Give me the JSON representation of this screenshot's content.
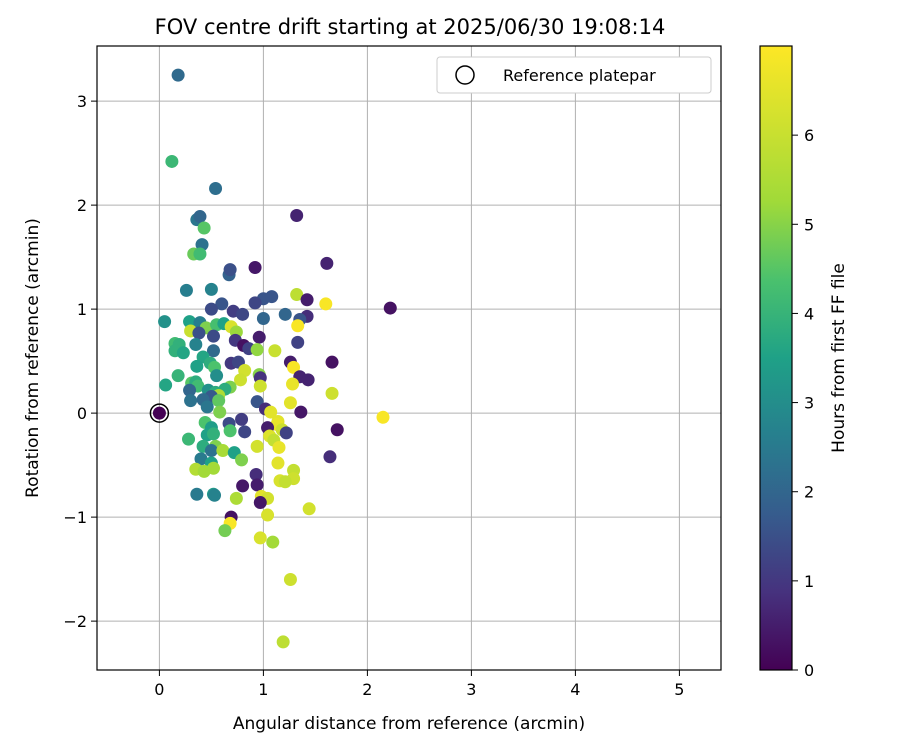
{
  "chart_data": {
    "type": "scatter",
    "title": "FOV centre drift starting at 2025/06/30 19:08:14",
    "xlabel": "Angular distance from reference (arcmin)",
    "ylabel": "Rotation from reference (arcmin)",
    "xlim": [
      -0.6,
      5.4
    ],
    "ylim": [
      -2.47,
      3.53
    ],
    "xticks": [
      0,
      1,
      2,
      3,
      4,
      5
    ],
    "yticks": [
      -2,
      -1,
      0,
      1,
      2,
      3
    ],
    "xtick_labels": [
      "0",
      "1",
      "2",
      "3",
      "4",
      "5"
    ],
    "ytick_labels": [
      "−2",
      "−1",
      "0",
      "1",
      "2",
      "3"
    ],
    "grid": true,
    "legend": {
      "position": "top-right",
      "entries": [
        "Reference platepar"
      ]
    },
    "reference_point": {
      "x": 0,
      "y": 0
    },
    "colorbar": {
      "label": "Hours from first FF file",
      "range": [
        0,
        7
      ],
      "ticks": [
        0,
        1,
        2,
        3,
        4,
        5,
        6
      ],
      "tick_labels": [
        "0",
        "1",
        "2",
        "3",
        "4",
        "5",
        "6"
      ],
      "colormap": "viridis"
    },
    "points": [
      {
        "x": 0.18,
        "y": 3.25,
        "c": 2.1
      },
      {
        "x": 0.12,
        "y": 2.42,
        "c": 4.1
      },
      {
        "x": 0.54,
        "y": 2.16,
        "c": 2.2
      },
      {
        "x": 1.32,
        "y": 1.9,
        "c": 0.6
      },
      {
        "x": 0.36,
        "y": 1.86,
        "c": 2.4
      },
      {
        "x": 0.39,
        "y": 1.89,
        "c": 2.0
      },
      {
        "x": 0.43,
        "y": 1.78,
        "c": 4.5
      },
      {
        "x": 0.41,
        "y": 1.62,
        "c": 2.3
      },
      {
        "x": 0.33,
        "y": 1.53,
        "c": 4.7
      },
      {
        "x": 0.39,
        "y": 1.53,
        "c": 4.2
      },
      {
        "x": 1.61,
        "y": 1.44,
        "c": 0.6
      },
      {
        "x": 0.92,
        "y": 1.4,
        "c": 0.4
      },
      {
        "x": 0.67,
        "y": 1.33,
        "c": 1.9
      },
      {
        "x": 0.68,
        "y": 1.38,
        "c": 1.5
      },
      {
        "x": 0.5,
        "y": 1.19,
        "c": 2.7
      },
      {
        "x": 0.26,
        "y": 1.18,
        "c": 2.6
      },
      {
        "x": 1.32,
        "y": 1.14,
        "c": 5.8
      },
      {
        "x": 1.08,
        "y": 1.12,
        "c": 1.6
      },
      {
        "x": 1.0,
        "y": 1.1,
        "c": 1.6
      },
      {
        "x": 0.92,
        "y": 1.06,
        "c": 1.3
      },
      {
        "x": 1.42,
        "y": 1.09,
        "c": 0.5
      },
      {
        "x": 1.6,
        "y": 1.05,
        "c": 6.9
      },
      {
        "x": 2.22,
        "y": 1.01,
        "c": 0.3
      },
      {
        "x": 0.6,
        "y": 1.05,
        "c": 1.6
      },
      {
        "x": 0.5,
        "y": 1.0,
        "c": 1.4
      },
      {
        "x": 0.71,
        "y": 0.98,
        "c": 1.1
      },
      {
        "x": 0.8,
        "y": 0.95,
        "c": 1.3
      },
      {
        "x": 1.21,
        "y": 0.95,
        "c": 2.0
      },
      {
        "x": 1.42,
        "y": 0.93,
        "c": 0.8
      },
      {
        "x": 1.35,
        "y": 0.9,
        "c": 1.6
      },
      {
        "x": 1.0,
        "y": 0.91,
        "c": 2.0
      },
      {
        "x": 0.05,
        "y": 0.88,
        "c": 3.1
      },
      {
        "x": 0.29,
        "y": 0.88,
        "c": 3.5
      },
      {
        "x": 0.39,
        "y": 0.87,
        "c": 2.6
      },
      {
        "x": 0.45,
        "y": 0.82,
        "c": 4.9
      },
      {
        "x": 0.55,
        "y": 0.85,
        "c": 4.3
      },
      {
        "x": 0.62,
        "y": 0.86,
        "c": 3.5
      },
      {
        "x": 0.69,
        "y": 0.83,
        "c": 6.3
      },
      {
        "x": 0.74,
        "y": 0.78,
        "c": 5.2
      },
      {
        "x": 1.33,
        "y": 0.84,
        "c": 6.9
      },
      {
        "x": 0.3,
        "y": 0.79,
        "c": 6.0
      },
      {
        "x": 0.38,
        "y": 0.77,
        "c": 1.5
      },
      {
        "x": 0.52,
        "y": 0.74,
        "c": 1.4
      },
      {
        "x": 0.96,
        "y": 0.73,
        "c": 0.5
      },
      {
        "x": 0.73,
        "y": 0.7,
        "c": 1.0
      },
      {
        "x": 1.33,
        "y": 0.68,
        "c": 1.2
      },
      {
        "x": 0.15,
        "y": 0.67,
        "c": 4.2
      },
      {
        "x": 0.19,
        "y": 0.66,
        "c": 3.9
      },
      {
        "x": 0.35,
        "y": 0.66,
        "c": 2.7
      },
      {
        "x": 0.81,
        "y": 0.65,
        "c": 0.3
      },
      {
        "x": 0.86,
        "y": 0.62,
        "c": 1.2
      },
      {
        "x": 0.94,
        "y": 0.61,
        "c": 5.1
      },
      {
        "x": 1.11,
        "y": 0.6,
        "c": 6.0
      },
      {
        "x": 0.15,
        "y": 0.6,
        "c": 3.9
      },
      {
        "x": 0.23,
        "y": 0.58,
        "c": 3.6
      },
      {
        "x": 0.52,
        "y": 0.6,
        "c": 2.1
      },
      {
        "x": 0.42,
        "y": 0.54,
        "c": 3.6
      },
      {
        "x": 0.49,
        "y": 0.48,
        "c": 3.8
      },
      {
        "x": 0.69,
        "y": 0.48,
        "c": 1.0
      },
      {
        "x": 0.76,
        "y": 0.49,
        "c": 1.3
      },
      {
        "x": 1.26,
        "y": 0.49,
        "c": 0.5
      },
      {
        "x": 1.66,
        "y": 0.49,
        "c": 0.3
      },
      {
        "x": 0.36,
        "y": 0.45,
        "c": 3.5
      },
      {
        "x": 0.53,
        "y": 0.44,
        "c": 4.4
      },
      {
        "x": 1.29,
        "y": 0.44,
        "c": 6.9
      },
      {
        "x": 0.82,
        "y": 0.41,
        "c": 6.2
      },
      {
        "x": 0.18,
        "y": 0.36,
        "c": 4.0
      },
      {
        "x": 0.55,
        "y": 0.36,
        "c": 3.0
      },
      {
        "x": 0.96,
        "y": 0.37,
        "c": 5.0
      },
      {
        "x": 0.97,
        "y": 0.34,
        "c": 0.9
      },
      {
        "x": 0.78,
        "y": 0.32,
        "c": 6.1
      },
      {
        "x": 1.35,
        "y": 0.35,
        "c": 0.6
      },
      {
        "x": 1.43,
        "y": 0.32,
        "c": 0.6
      },
      {
        "x": 0.31,
        "y": 0.29,
        "c": 4.5
      },
      {
        "x": 0.35,
        "y": 0.3,
        "c": 3.8
      },
      {
        "x": 0.06,
        "y": 0.27,
        "c": 3.6
      },
      {
        "x": 0.37,
        "y": 0.26,
        "c": 4.2
      },
      {
        "x": 0.68,
        "y": 0.25,
        "c": 4.9
      },
      {
        "x": 0.97,
        "y": 0.26,
        "c": 6.1
      },
      {
        "x": 1.28,
        "y": 0.28,
        "c": 6.6
      },
      {
        "x": 0.63,
        "y": 0.23,
        "c": 3.8
      },
      {
        "x": 0.29,
        "y": 0.22,
        "c": 2.0
      },
      {
        "x": 0.47,
        "y": 0.22,
        "c": 3.1
      },
      {
        "x": 0.54,
        "y": 0.2,
        "c": 3.8
      },
      {
        "x": 0.57,
        "y": 0.17,
        "c": 5.5
      },
      {
        "x": 0.5,
        "y": 0.16,
        "c": 1.7
      },
      {
        "x": 1.66,
        "y": 0.19,
        "c": 6.1
      },
      {
        "x": 0.3,
        "y": 0.12,
        "c": 2.3
      },
      {
        "x": 0.42,
        "y": 0.13,
        "c": 2.1
      },
      {
        "x": 0.57,
        "y": 0.12,
        "c": 4.6
      },
      {
        "x": 0.94,
        "y": 0.11,
        "c": 1.6
      },
      {
        "x": 1.26,
        "y": 0.1,
        "c": 6.5
      },
      {
        "x": 0.46,
        "y": 0.06,
        "c": 2.4
      },
      {
        "x": 1.02,
        "y": 0.04,
        "c": 0.8
      },
      {
        "x": 0.58,
        "y": 0.01,
        "c": 4.9
      },
      {
        "x": 1.07,
        "y": 0.01,
        "c": 6.5
      },
      {
        "x": 1.36,
        "y": 0.01,
        "c": 0.4
      },
      {
        "x": 2.15,
        "y": -0.04,
        "c": 6.9
      },
      {
        "x": 0.79,
        "y": -0.06,
        "c": 1.1
      },
      {
        "x": 1.14,
        "y": -0.08,
        "c": 6.5
      },
      {
        "x": 0.67,
        "y": -0.1,
        "c": 1.4
      },
      {
        "x": 0.44,
        "y": -0.09,
        "c": 4.4
      },
      {
        "x": 0.5,
        "y": -0.14,
        "c": 3.4
      },
      {
        "x": 1.13,
        "y": -0.11,
        "c": 6.6
      },
      {
        "x": 1.04,
        "y": -0.14,
        "c": 0.5
      },
      {
        "x": 1.71,
        "y": -0.16,
        "c": 0.3
      },
      {
        "x": 0.68,
        "y": -0.17,
        "c": 4.4
      },
      {
        "x": 0.82,
        "y": -0.18,
        "c": 1.3
      },
      {
        "x": 1.18,
        "y": -0.16,
        "c": 6.1
      },
      {
        "x": 0.46,
        "y": -0.21,
        "c": 3.5
      },
      {
        "x": 0.52,
        "y": -0.2,
        "c": 3.9
      },
      {
        "x": 1.06,
        "y": -0.22,
        "c": 6.4
      },
      {
        "x": 1.22,
        "y": -0.19,
        "c": 1.2
      },
      {
        "x": 0.28,
        "y": -0.25,
        "c": 4.1
      },
      {
        "x": 1.1,
        "y": -0.26,
        "c": 5.9
      },
      {
        "x": 0.94,
        "y": -0.32,
        "c": 6.2
      },
      {
        "x": 0.54,
        "y": -0.32,
        "c": 4.9
      },
      {
        "x": 0.42,
        "y": -0.32,
        "c": 3.8
      },
      {
        "x": 0.5,
        "y": -0.36,
        "c": 2.3
      },
      {
        "x": 0.61,
        "y": -0.36,
        "c": 5.4
      },
      {
        "x": 1.15,
        "y": -0.33,
        "c": 6.6
      },
      {
        "x": 0.72,
        "y": -0.38,
        "c": 3.5
      },
      {
        "x": 0.4,
        "y": -0.44,
        "c": 2.5
      },
      {
        "x": 0.5,
        "y": -0.48,
        "c": 3.5
      },
      {
        "x": 0.79,
        "y": -0.45,
        "c": 4.9
      },
      {
        "x": 1.14,
        "y": -0.48,
        "c": 6.5
      },
      {
        "x": 1.64,
        "y": -0.42,
        "c": 0.8
      },
      {
        "x": 0.35,
        "y": -0.54,
        "c": 5.6
      },
      {
        "x": 0.43,
        "y": -0.56,
        "c": 5.3
      },
      {
        "x": 0.52,
        "y": -0.53,
        "c": 5.3
      },
      {
        "x": 1.29,
        "y": -0.55,
        "c": 5.9
      },
      {
        "x": 0.93,
        "y": -0.59,
        "c": 0.8
      },
      {
        "x": 1.29,
        "y": -0.63,
        "c": 6.1
      },
      {
        "x": 1.16,
        "y": -0.65,
        "c": 6.3
      },
      {
        "x": 1.21,
        "y": -0.66,
        "c": 5.9
      },
      {
        "x": 0.8,
        "y": -0.7,
        "c": 0.4
      },
      {
        "x": 0.94,
        "y": -0.69,
        "c": 0.5
      },
      {
        "x": 0.36,
        "y": -0.78,
        "c": 2.5
      },
      {
        "x": 0.52,
        "y": -0.78,
        "c": 3.3
      },
      {
        "x": 0.53,
        "y": -0.79,
        "c": 2.7
      },
      {
        "x": 0.74,
        "y": -0.82,
        "c": 5.5
      },
      {
        "x": 0.98,
        "y": -0.8,
        "c": 6.5
      },
      {
        "x": 1.04,
        "y": -0.82,
        "c": 6.2
      },
      {
        "x": 0.97,
        "y": -0.86,
        "c": 0.4
      },
      {
        "x": 1.44,
        "y": -0.92,
        "c": 6.2
      },
      {
        "x": 1.04,
        "y": -0.98,
        "c": 6.3
      },
      {
        "x": 0.69,
        "y": -1.0,
        "c": 0.3
      },
      {
        "x": 0.68,
        "y": -1.06,
        "c": 6.9
      },
      {
        "x": 0.63,
        "y": -1.13,
        "c": 4.8
      },
      {
        "x": 0.97,
        "y": -1.2,
        "c": 6.3
      },
      {
        "x": 1.09,
        "y": -1.24,
        "c": 5.3
      },
      {
        "x": 1.26,
        "y": -1.6,
        "c": 6.1
      },
      {
        "x": 1.19,
        "y": -2.2,
        "c": 5.8
      }
    ]
  }
}
